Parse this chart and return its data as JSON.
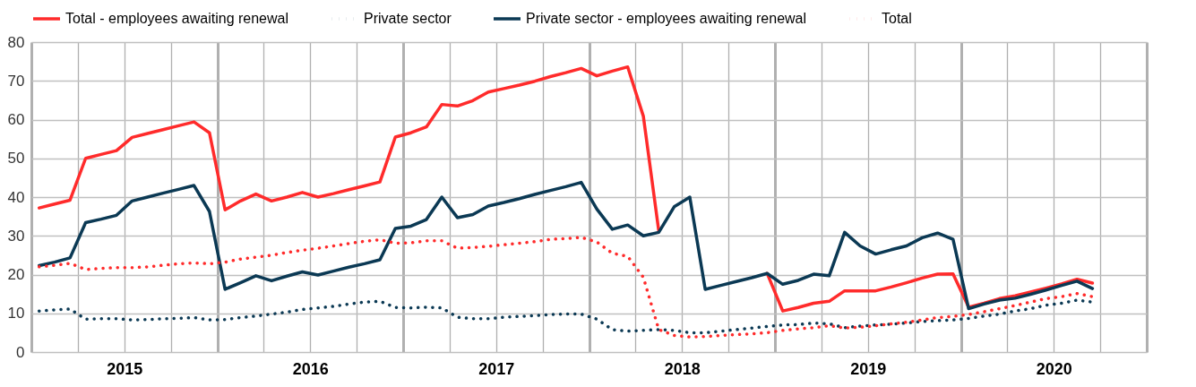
{
  "chart_data": {
    "type": "line",
    "x": [
      2015.042,
      2015.125,
      2015.208,
      2015.292,
      2015.375,
      2015.458,
      2015.542,
      2015.625,
      2015.708,
      2015.792,
      2015.875,
      2015.958,
      2016.042,
      2016.125,
      2016.208,
      2016.292,
      2016.375,
      2016.458,
      2016.542,
      2016.625,
      2016.708,
      2016.792,
      2016.875,
      2016.958,
      2017.042,
      2017.125,
      2017.208,
      2017.292,
      2017.375,
      2017.458,
      2017.542,
      2017.625,
      2017.708,
      2017.792,
      2017.875,
      2017.958,
      2018.042,
      2018.125,
      2018.208,
      2018.292,
      2018.375,
      2018.458,
      2018.542,
      2018.625,
      2018.708,
      2018.792,
      2018.875,
      2018.958,
      2019.042,
      2019.125,
      2019.208,
      2019.292,
      2019.375,
      2019.458,
      2019.542,
      2019.625,
      2019.708,
      2019.792,
      2019.875,
      2019.958,
      2020.042,
      2020.125,
      2020.208,
      2020.292,
      2020.375,
      2020.458,
      2020.542,
      2020.625,
      2020.708
    ],
    "series": [
      {
        "name": "Total - employees awaiting renewal",
        "color": "#ff2b2b",
        "line_style": "solid",
        "values": [
          37.2,
          38.2,
          39.2,
          50.0,
          51.0,
          52.0,
          55.4,
          56.4,
          57.4,
          58.4,
          59.4,
          56.6,
          36.7,
          39.0,
          40.8,
          39.0,
          40.0,
          41.2,
          40.0,
          40.9,
          41.9,
          42.9,
          43.9,
          55.5,
          56.6,
          58.1,
          63.9,
          63.5,
          64.9,
          67.1,
          68.0,
          68.9,
          69.9,
          71.1,
          72.1,
          73.2,
          71.3,
          72.5,
          73.6,
          60.9,
          31.3,
          null,
          null,
          null,
          null,
          null,
          null,
          20.3,
          10.6,
          11.5,
          12.6,
          13.1,
          15.8,
          15.8,
          15.8,
          16.8,
          17.9,
          19.1,
          20.1,
          20.2,
          11.6,
          12.6,
          13.8,
          14.5,
          15.5,
          16.5,
          17.6,
          18.8,
          17.8
        ]
      },
      {
        "name": "Private sector",
        "color": "#0b3954",
        "line_style": "dotted",
        "values": [
          10.6,
          10.9,
          11.1,
          8.5,
          8.6,
          8.6,
          8.3,
          8.4,
          8.6,
          8.7,
          8.9,
          8.3,
          8.4,
          8.9,
          9.3,
          9.8,
          10.3,
          11.0,
          11.4,
          11.8,
          12.4,
          12.9,
          13.1,
          11.5,
          11.4,
          11.6,
          11.4,
          9.0,
          8.6,
          8.6,
          9.0,
          9.2,
          9.4,
          9.7,
          9.8,
          9.8,
          8.5,
          5.8,
          5.4,
          5.6,
          5.8,
          5.6,
          5.0,
          5.0,
          5.4,
          5.8,
          6.2,
          6.6,
          7.0,
          7.1,
          7.5,
          7.3,
          6.3,
          6.7,
          7.0,
          7.2,
          7.5,
          7.9,
          8.1,
          8.3,
          8.7,
          9.3,
          9.8,
          10.6,
          11.2,
          12.1,
          12.6,
          13.4,
          12.9
        ]
      },
      {
        "name": "Private sector - employees awaiting renewal",
        "color": "#0b3954",
        "line_style": "solid",
        "values": [
          22.3,
          23.2,
          24.3,
          33.4,
          34.3,
          35.3,
          39.0,
          40.0,
          41.0,
          42.0,
          43.0,
          36.3,
          16.2,
          17.9,
          19.7,
          18.4,
          19.6,
          20.7,
          19.9,
          20.9,
          21.9,
          22.8,
          23.8,
          31.9,
          32.5,
          34.2,
          40.0,
          34.7,
          35.5,
          37.7,
          38.6,
          39.6,
          40.7,
          41.7,
          42.7,
          43.8,
          36.9,
          31.7,
          32.8,
          30.0,
          30.9,
          37.5,
          40.0,
          16.2,
          17.2,
          18.2,
          19.2,
          20.3,
          17.5,
          18.5,
          20.1,
          19.7,
          30.9,
          27.4,
          25.3,
          26.4,
          27.4,
          29.5,
          30.7,
          29.1,
          11.2,
          12.4,
          13.4,
          13.9,
          14.9,
          16.0,
          17.2,
          18.3,
          16.4
        ]
      },
      {
        "name": "Total",
        "color": "#ff2b2b",
        "line_style": "dotted",
        "values": [
          22.0,
          22.4,
          22.9,
          21.3,
          21.6,
          21.8,
          21.8,
          22.0,
          22.4,
          22.8,
          23.0,
          22.8,
          23.2,
          24.0,
          24.5,
          25.0,
          25.7,
          26.3,
          26.8,
          27.4,
          28.0,
          28.6,
          29.0,
          28.1,
          28.2,
          28.7,
          28.7,
          26.8,
          27.0,
          27.3,
          27.7,
          28.1,
          28.5,
          29.1,
          29.3,
          29.6,
          28.4,
          25.5,
          24.7,
          19.3,
          5.8,
          4.3,
          3.9,
          4.0,
          4.3,
          4.5,
          4.7,
          5.0,
          5.6,
          6.0,
          6.3,
          6.8,
          6.2,
          6.4,
          6.8,
          7.3,
          7.7,
          8.3,
          8.9,
          9.2,
          9.7,
          10.4,
          11.2,
          12.0,
          12.9,
          13.8,
          14.3,
          15.1,
          14.3
        ]
      }
    ],
    "xlim": [
      2015,
      2021
    ],
    "xticks": [
      {
        "value": 2015,
        "label": null
      },
      {
        "value": 2015.25,
        "label": null
      },
      {
        "value": 2015.5,
        "label": "2015"
      },
      {
        "value": 2015.75,
        "label": null
      },
      {
        "value": 2016,
        "label": null
      },
      {
        "value": 2016.25,
        "label": null
      },
      {
        "value": 2016.5,
        "label": "2016"
      },
      {
        "value": 2016.75,
        "label": null
      },
      {
        "value": 2017,
        "label": null
      },
      {
        "value": 2017.25,
        "label": null
      },
      {
        "value": 2017.5,
        "label": "2017"
      },
      {
        "value": 2017.75,
        "label": null
      },
      {
        "value": 2018,
        "label": null
      },
      {
        "value": 2018.25,
        "label": null
      },
      {
        "value": 2018.5,
        "label": "2018"
      },
      {
        "value": 2018.75,
        "label": null
      },
      {
        "value": 2019,
        "label": null
      },
      {
        "value": 2019.25,
        "label": null
      },
      {
        "value": 2019.5,
        "label": "2019"
      },
      {
        "value": 2019.75,
        "label": null
      },
      {
        "value": 2020,
        "label": null
      },
      {
        "value": 2020.25,
        "label": null
      },
      {
        "value": 2020.5,
        "label": "2020"
      },
      {
        "value": 2020.75,
        "label": null
      },
      {
        "value": 2021,
        "label": null
      }
    ],
    "ylim": [
      0,
      80
    ],
    "yticks": [
      0,
      10,
      20,
      30,
      40,
      50,
      60,
      70,
      80
    ],
    "grid": true,
    "legend": "top",
    "marker": "none"
  }
}
